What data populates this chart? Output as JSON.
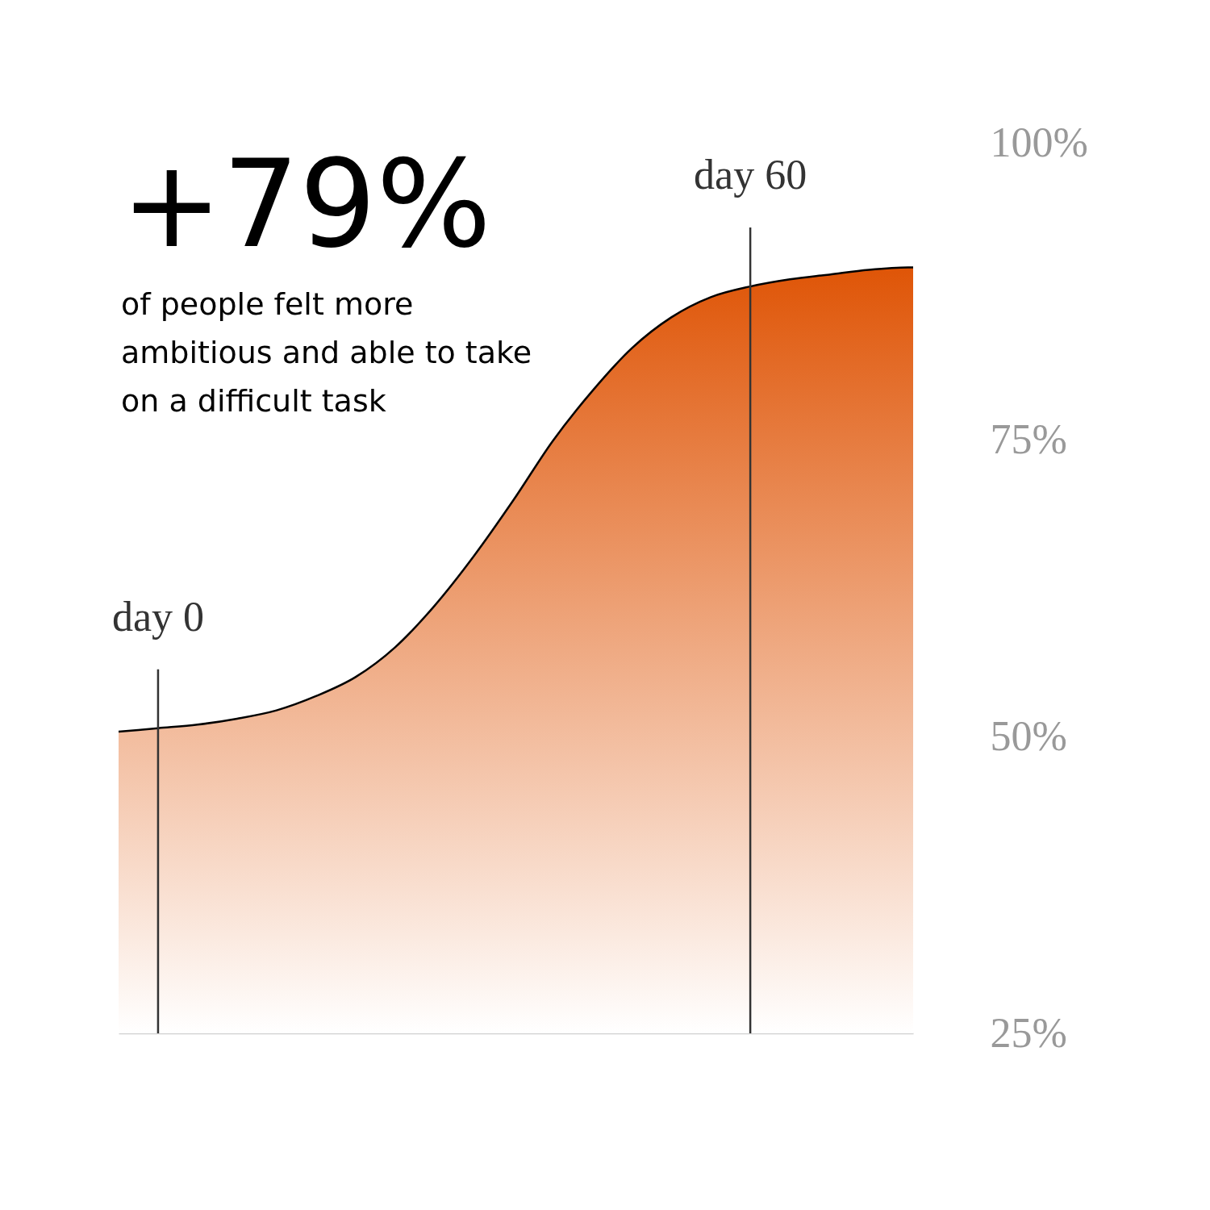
{
  "chart_data": {
    "type": "area",
    "title": "+79%",
    "subtitle": "of people felt more ambitious and able to take on a difficult task",
    "x": [
      -4,
      0,
      4,
      8,
      12,
      16,
      20,
      24,
      28,
      32,
      36,
      40,
      44,
      48,
      52,
      56,
      60,
      64,
      68,
      72,
      76,
      76.5
    ],
    "series": [
      {
        "color": "#df5507",
        "values": [
          50.4,
          50.7,
          51.0,
          51.5,
          52.2,
          53.4,
          55.0,
          57.5,
          61.0,
          65.2,
          69.9,
          74.9,
          79.1,
          82.7,
          85.3,
          87.0,
          87.9,
          88.5,
          88.9,
          89.3,
          89.5,
          89.5
        ]
      }
    ],
    "xlim": [
      -4,
      76.5
    ],
    "ylim": [
      25,
      100
    ],
    "yticks": [
      {
        "value": 25,
        "label": "25%"
      },
      {
        "value": 50,
        "label": "50%"
      },
      {
        "value": 75,
        "label": "75%"
      },
      {
        "value": 100,
        "label": "100%"
      }
    ],
    "tick_labels": "y",
    "ref_lines": [
      {
        "axis": "x",
        "value": 0,
        "label": "day 0",
        "color": "#333333"
      },
      {
        "axis": "x",
        "value": 60,
        "label": "day 60",
        "color": "#333333"
      }
    ]
  }
}
